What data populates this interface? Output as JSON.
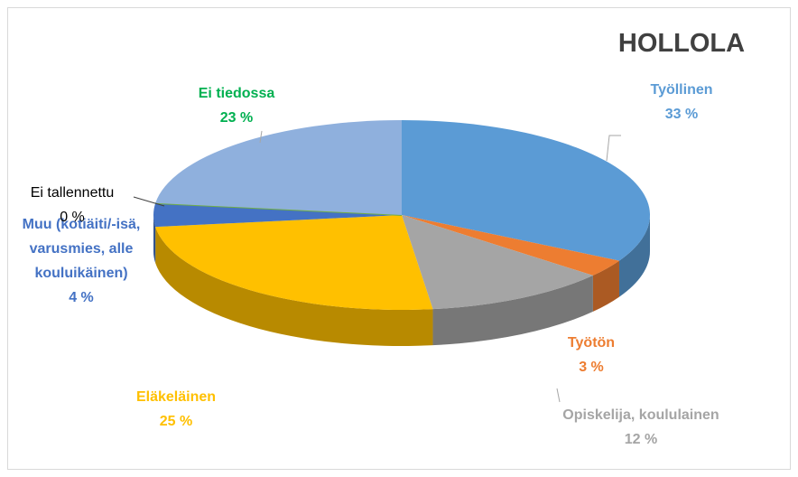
{
  "chart_data": {
    "type": "pie",
    "title": "HOLLOLA",
    "categories": [
      "Työllinen",
      "Työtön",
      "Opiskelija, koululainen",
      "Eläkeläinen",
      "Muu (kotiäiti/-isä, varusmies, alle kouluikäinen)",
      "Ei tallennettu",
      "Ei tiedossa"
    ],
    "values": [
      33,
      3,
      12,
      25,
      4,
      0,
      23
    ],
    "value_labels": [
      "33 %",
      "3 %",
      "12 %",
      "25 %",
      "4 %",
      "0 %",
      "23 %"
    ],
    "colors": [
      "#5b9bd5",
      "#ed7d31",
      "#a5a5a5",
      "#ffc000",
      "#4472c4",
      "#70ad47",
      "#8fb0dd"
    ],
    "label_colors": [
      "#5b9bd5",
      "#ed7d31",
      "#a5a5a5",
      "#ffc000",
      "#4472c4",
      "#000000",
      "#00b050"
    ]
  }
}
